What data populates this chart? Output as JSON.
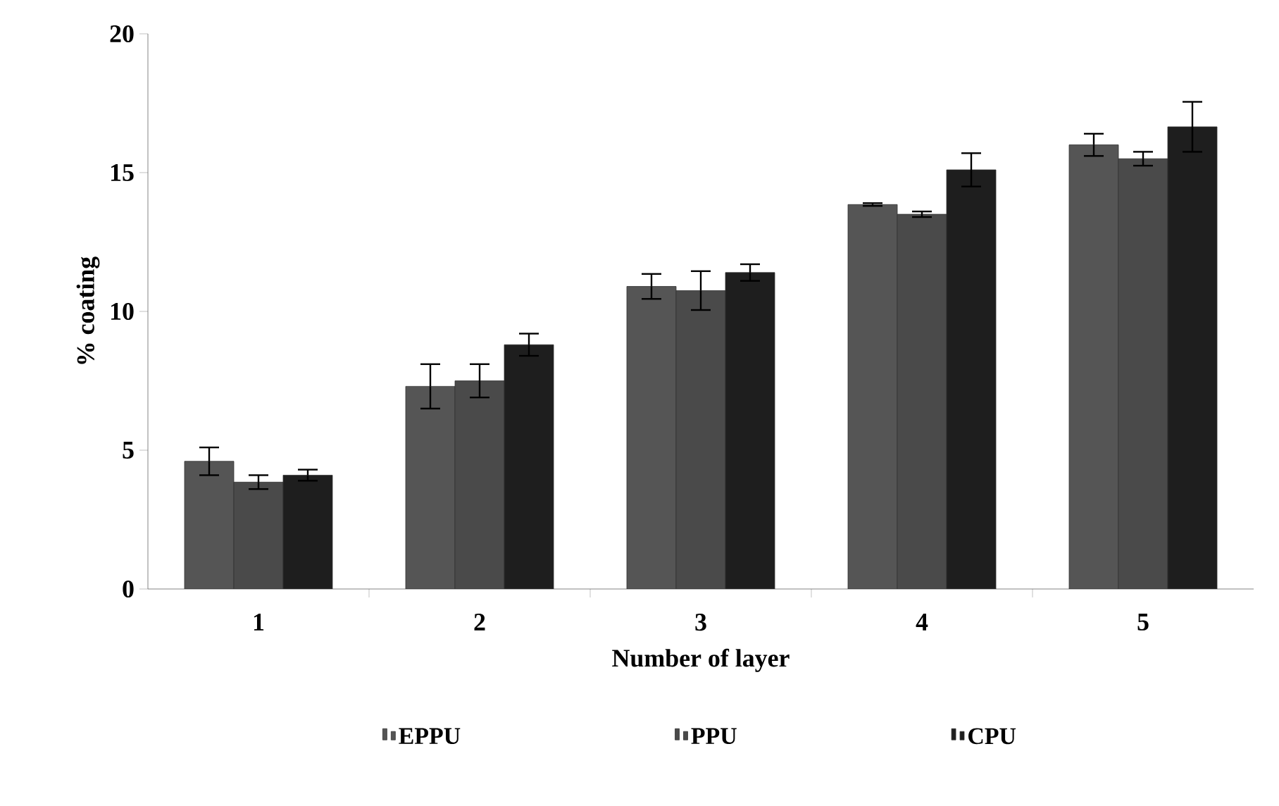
{
  "chart_data": {
    "type": "bar",
    "xlabel": "Number of layer",
    "ylabel": "% coating",
    "categories": [
      "1",
      "2",
      "3",
      "4",
      "5"
    ],
    "series": [
      {
        "name": "EPPU",
        "color": "#555555",
        "values": [
          4.6,
          7.3,
          10.9,
          13.85,
          16.0
        ],
        "errors": [
          0.5,
          0.8,
          0.45,
          0.05,
          0.4
        ]
      },
      {
        "name": "PPU",
        "color": "#4a4a4a",
        "values": [
          3.85,
          7.5,
          10.75,
          13.5,
          15.5
        ],
        "errors": [
          0.25,
          0.6,
          0.7,
          0.1,
          0.25
        ]
      },
      {
        "name": "CPU",
        "color": "#1e1e1e",
        "values": [
          4.1,
          8.8,
          11.4,
          15.1,
          16.65
        ],
        "errors": [
          0.2,
          0.4,
          0.3,
          0.6,
          0.9
        ]
      }
    ],
    "ylim": [
      0,
      20
    ],
    "yticks": [
      0,
      5,
      10,
      15,
      20
    ],
    "legend": "bottom",
    "grid": false
  }
}
